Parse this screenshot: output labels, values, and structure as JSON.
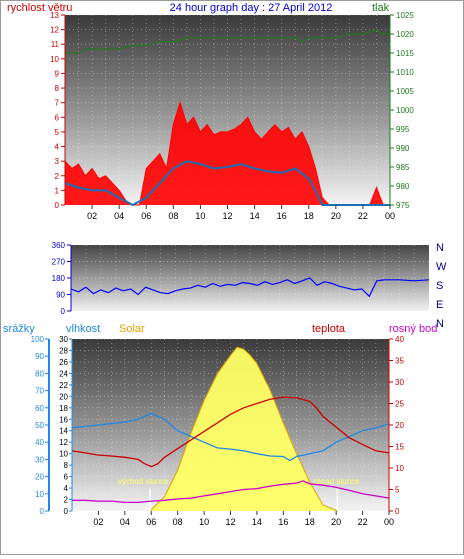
{
  "colors": {
    "wind": "#ff0000",
    "gust_line": "#1c6fb5",
    "pressure": "#1e7a1e",
    "direction": "#0000ff",
    "rain": "#1e88e5",
    "humidity": "#1e88e5",
    "solar": "#e0a000",
    "solar_fill": "#ffff66",
    "temperature": "#cc0000",
    "dew_point": "#cc00cc"
  },
  "chart_data": [
    {
      "type": "area",
      "title": "24 hour graph day : 27 April 2012",
      "y_left_label": "rychlost větru",
      "y_right_label": "tlak",
      "y_left_ticks": [
        "0",
        "1",
        "2",
        "3",
        "4",
        "5",
        "6",
        "7",
        "8",
        "9",
        "10",
        "11",
        "12",
        "13"
      ],
      "y_right_ticks": [
        "975",
        "980",
        "985",
        "990",
        "995",
        "1000",
        "1005",
        "1010",
        "1015",
        "1020",
        "1025"
      ],
      "x_tick_labels": [
        "02",
        "04",
        "06",
        "08",
        "10",
        "12",
        "14",
        "16",
        "18",
        "20",
        "22",
        "00"
      ],
      "ylim_left": [
        0,
        13
      ],
      "ylim_right": [
        975,
        1025
      ],
      "series": [
        {
          "x": [
            0,
            0.5,
            1,
            1.5,
            2,
            2.5,
            3,
            3.5,
            4,
            4.5,
            5,
            5.5,
            6,
            6.5,
            7,
            7.5,
            8,
            8.5,
            9,
            9.5,
            10,
            10.5,
            11,
            11.5,
            12,
            12.5,
            13,
            13.5,
            14,
            14.5,
            15,
            15.5,
            16,
            16.5,
            17,
            17.5,
            18,
            18.5,
            19,
            19.5,
            20,
            21,
            22,
            22.5,
            23,
            23.5,
            24
          ],
          "values": [
            3.0,
            2.5,
            2.8,
            2.0,
            2.5,
            1.8,
            2.0,
            1.5,
            1.0,
            0.3,
            0,
            0,
            2.5,
            3.0,
            3.5,
            2.5,
            5.5,
            7.0,
            5.5,
            6.0,
            5.0,
            5.5,
            4.8,
            5.0,
            5.0,
            5.2,
            5.5,
            6.0,
            5.0,
            4.5,
            5.0,
            5.5,
            5.0,
            5.3,
            4.5,
            5.0,
            4.0,
            2.5,
            0.5,
            0,
            0,
            0,
            0,
            0,
            1.2,
            0,
            0
          ]
        },
        {
          "x": [
            0,
            1,
            2,
            3,
            4,
            5,
            6,
            7,
            8,
            9,
            10,
            11,
            12,
            13,
            14,
            15,
            16,
            17,
            18,
            18.5,
            19,
            20,
            21,
            22,
            23,
            24
          ],
          "values": [
            1.5,
            1.2,
            1.0,
            1.0,
            0.5,
            0,
            0.5,
            1.5,
            2.5,
            3.0,
            2.8,
            2.5,
            2.6,
            2.8,
            2.5,
            2.3,
            2.2,
            2.5,
            1.8,
            1.0,
            0,
            0,
            0,
            0,
            0,
            0
          ]
        },
        {
          "x": [
            0,
            0.5,
            1,
            1.5,
            2,
            3,
            4,
            5,
            6,
            7,
            8,
            9,
            10,
            11,
            12,
            13,
            14,
            15,
            16,
            17,
            17.5,
            18,
            19,
            20,
            21,
            22,
            23,
            23.5,
            24
          ],
          "values": [
            1015,
            1015,
            1015,
            1016,
            1016,
            1016,
            1016,
            1017,
            1017,
            1018,
            1018,
            1019,
            1019,
            1019,
            1019,
            1019,
            1019,
            1019,
            1019,
            1019,
            1018,
            1019,
            1019,
            1019,
            1020,
            1020,
            1021,
            1020,
            1020
          ]
        }
      ]
    },
    {
      "type": "line",
      "y_ticks": [
        "360",
        "270",
        "180",
        "90",
        "0"
      ],
      "compass_labels": [
        "N",
        "W",
        "S",
        "E",
        "N"
      ],
      "ylim": [
        0,
        360
      ],
      "series": [
        {
          "x": [
            0,
            0.5,
            1,
            1.5,
            2,
            2.5,
            3,
            3.5,
            4,
            4.5,
            5,
            5.5,
            6,
            6.5,
            7,
            7.5,
            8,
            8.5,
            9,
            9.5,
            10,
            10.5,
            11,
            11.5,
            12,
            12.5,
            13,
            13.5,
            14,
            14.5,
            15,
            15.5,
            16,
            16.5,
            17,
            17.5,
            18,
            18.5,
            19,
            19.5,
            20,
            20.5,
            21,
            22,
            23,
            24
          ],
          "values": [
            120,
            105,
            130,
            95,
            115,
            100,
            125,
            110,
            120,
            90,
            130,
            115,
            100,
            95,
            110,
            120,
            125,
            140,
            130,
            150,
            135,
            145,
            140,
            155,
            150,
            140,
            160,
            145,
            155,
            170,
            150,
            165,
            180,
            140,
            160,
            150,
            135,
            125,
            115,
            120,
            80,
            165,
            170,
            170,
            165,
            170
          ]
        }
      ]
    },
    {
      "type": "line",
      "y_left_label": "srážky",
      "y_humidity_label": "vlhkost",
      "y_solar_label": "Solar",
      "y_temp_label": "teplota",
      "y_dew_label": "rosný bod",
      "rain_ticks": [
        "0",
        "10",
        "20",
        "30",
        "40",
        "50",
        "60",
        "70",
        "80",
        "90",
        "100"
      ],
      "humidity_ticks": [
        "0",
        "2",
        "4",
        "6",
        "8",
        "10",
        "12",
        "14",
        "16",
        "18",
        "20",
        "22",
        "24",
        "26",
        "28",
        "30"
      ],
      "temp_ticks": [
        "0",
        "5",
        "10",
        "15",
        "20",
        "25",
        "30",
        "35",
        "40"
      ],
      "x_tick_labels": [
        "02",
        "04",
        "06",
        "08",
        "10",
        "12",
        "14",
        "16",
        "18",
        "20",
        "22",
        "00"
      ],
      "sunrise_label": "východ slunce",
      "sunset_label": "západ slunce",
      "sunrise_hour": 5.9,
      "sunset_hour": 20.1,
      "series": [
        {
          "x": [
            0,
            2,
            4,
            5,
            6,
            7,
            8,
            9,
            10,
            11,
            12,
            13,
            14,
            15,
            16,
            16.5,
            17,
            18,
            19,
            20,
            21,
            22,
            23,
            24
          ],
          "values": [
            14.5,
            15,
            15.5,
            16,
            17,
            16,
            14,
            13,
            12,
            11,
            10.8,
            10.5,
            10,
            9.6,
            9.5,
            8.8,
            9.5,
            10,
            10.5,
            12,
            13,
            14,
            14.5,
            15.2
          ]
        },
        {
          "x": [
            5.9,
            7,
            8,
            9,
            10,
            11,
            12,
            12.5,
            13,
            13.5,
            14,
            15,
            16,
            17,
            18,
            19,
            20.1
          ],
          "values": [
            0,
            70,
            200,
            380,
            540,
            670,
            760,
            800,
            790,
            760,
            720,
            590,
            430,
            280,
            140,
            30,
            0
          ]
        },
        {
          "x": [
            0,
            1,
            2,
            3,
            4,
            5,
            5.5,
            6,
            6.5,
            7,
            8,
            9,
            10,
            11,
            12,
            13,
            14,
            15,
            16,
            17,
            18,
            18.5,
            19,
            20,
            21,
            22,
            23,
            24
          ],
          "values": [
            14,
            13.5,
            13,
            12.8,
            12.5,
            12,
            11,
            10.3,
            11,
            12.5,
            14.5,
            16.5,
            18.5,
            20.5,
            22.5,
            24,
            25,
            26,
            26.5,
            26.3,
            25.5,
            24,
            22,
            19.5,
            17,
            15.5,
            14,
            13.5
          ]
        },
        {
          "x": [
            0,
            1,
            2,
            3,
            4,
            5,
            6,
            7,
            8,
            9,
            10,
            11,
            12,
            13,
            14,
            15,
            16,
            17,
            17.5,
            18,
            19,
            20,
            21,
            22,
            23,
            24
          ],
          "values": [
            2.5,
            2.5,
            2.3,
            2.3,
            2.0,
            2.0,
            2.3,
            2.5,
            2.8,
            3.0,
            3.5,
            4.0,
            4.5,
            5.0,
            5.2,
            5.8,
            6.2,
            6.5,
            7.0,
            6.3,
            6.0,
            5.5,
            4.8,
            4.0,
            3.5,
            3.0
          ]
        }
      ]
    }
  ]
}
